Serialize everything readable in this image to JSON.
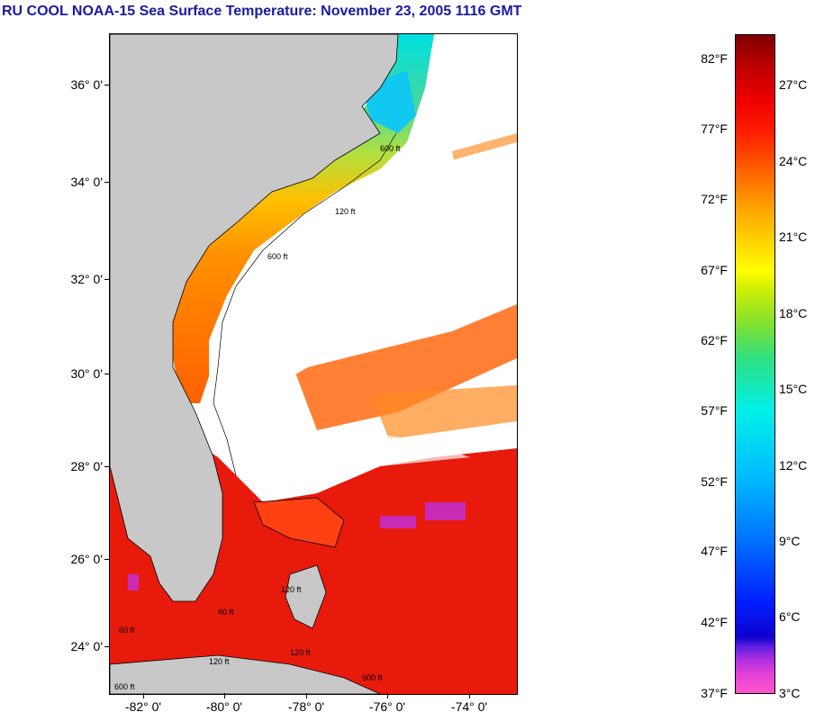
{
  "title": "RU COOL  NOAA-15  Sea Surface Temperature:  November 23, 2005 1116 GMT",
  "latitude_labels": [
    "36° 0'",
    "34° 0'",
    "32° 0'",
    "30° 0'",
    "28° 0'",
    "26° 0'",
    "24° 0'"
  ],
  "longitude_labels": [
    "-82° 0'",
    "-80° 0'",
    "-78° 0'",
    "-76° 0'",
    "-74° 0'"
  ],
  "colorbar": {
    "fahrenheit_labels": [
      "82°F",
      "77°F",
      "72°F",
      "67°F",
      "62°F",
      "57°F",
      "52°F",
      "47°F",
      "42°F",
      "37°F"
    ],
    "celsius_labels": [
      "27°C",
      "24°C",
      "21°C",
      "18°C",
      "15°C",
      "12°C",
      "9°C",
      "6°C",
      "3°C"
    ]
  },
  "map_annotations": [
    "600 ft",
    "120 ft",
    "600 ft",
    "120 ft",
    "60 ft",
    "120 ft",
    "600 ft",
    "120 ft",
    "60 ft",
    "600 ft"
  ],
  "colors": {
    "land": "#c8c8c8",
    "cloud": "#ffffff",
    "warm_stream": "#ee1a0a",
    "title_blue": "#1a1aa0"
  }
}
